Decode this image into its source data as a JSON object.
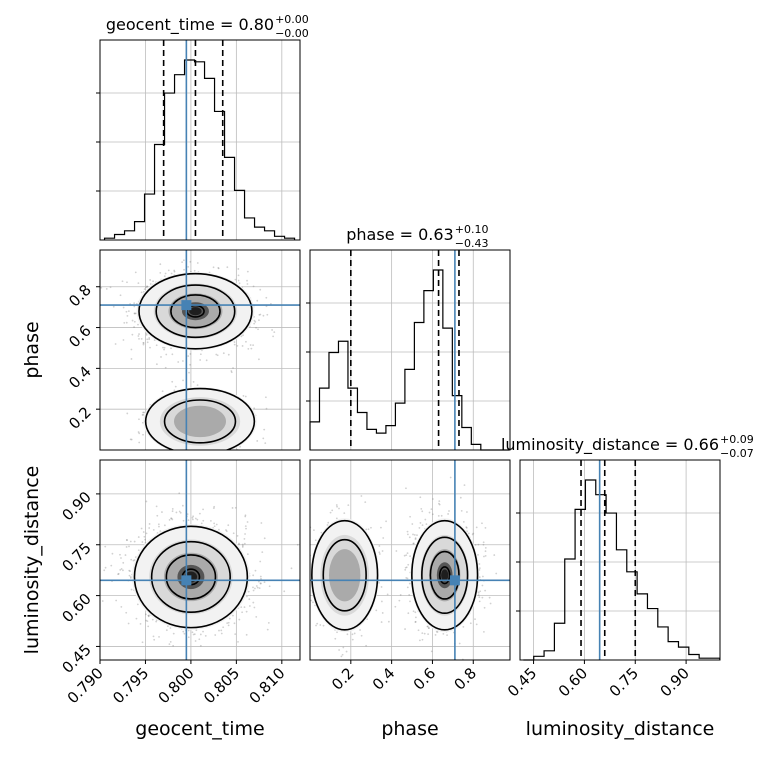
{
  "chart_data": {
    "type": "corner",
    "parameters": [
      "geocent_time",
      "phase",
      "luminosity_distance"
    ],
    "truth": {
      "geocent_time": 0.7995,
      "phase": 0.71,
      "luminosity_distance": 0.645
    },
    "titles": {
      "geocent_time": {
        "label": "geocent_time = 0.80",
        "plus": "+0.00",
        "minus": "−0.00"
      },
      "phase": {
        "label": "phase = 0.63",
        "plus": "+0.10",
        "minus": "−0.43"
      },
      "luminosity_distance": {
        "label": "luminosity_distance = 0.66",
        "plus": "+0.09",
        "minus": "−0.07"
      }
    },
    "axes": {
      "geocent_time": {
        "range": [
          0.79,
          0.812
        ],
        "ticks": [
          "0.790",
          "0.795",
          "0.800",
          "0.805",
          "0.810"
        ],
        "tick_values": [
          0.79,
          0.795,
          0.8,
          0.805,
          0.81
        ]
      },
      "phase": {
        "range": [
          0.0,
          0.98
        ],
        "ticks": [
          "0.2",
          "0.4",
          "0.6",
          "0.8"
        ],
        "tick_values": [
          0.2,
          0.4,
          0.6,
          0.8
        ]
      },
      "luminosity_distance": {
        "range": [
          0.41,
          1.0
        ],
        "ticks": [
          "0.45",
          "0.60",
          "0.75",
          "0.90"
        ],
        "tick_values": [
          0.45,
          0.6,
          0.75,
          0.9
        ]
      }
    },
    "quantiles": {
      "geocent_time": [
        0.797,
        0.8005,
        0.8035
      ],
      "phase": [
        0.2,
        0.63,
        0.73
      ],
      "luminosity_distance": [
        0.59,
        0.66,
        0.75
      ]
    },
    "histograms": {
      "geocent_time": {
        "edges_start": 0.7905,
        "bin_width": 0.0011,
        "counts": [
          1,
          3,
          5,
          10,
          25,
          52,
          80,
          90,
          98,
          97,
          88,
          70,
          45,
          27,
          12,
          7,
          5,
          2,
          1
        ]
      },
      "phase": {
        "edges_start": 0.0,
        "bin_width": 0.0465,
        "counts": [
          15,
          33,
          52,
          58,
          33,
          20,
          11,
          9,
          13,
          25,
          43,
          68,
          85,
          96,
          65,
          29,
          12,
          3,
          0,
          0,
          0
        ]
      },
      "luminosity_distance": {
        "edges_start": 0.42,
        "bin_width": 0.0305,
        "counts": [
          0,
          2,
          5,
          20,
          55,
          82,
          98,
          90,
          80,
          60,
          48,
          36,
          28,
          18,
          10,
          7,
          3,
          1,
          1
        ]
      }
    },
    "grid": true,
    "pairs": [
      {
        "x": "geocent_time",
        "y": "phase",
        "modes": [
          {
            "cx": 0.8005,
            "cy": 0.68,
            "sx": 0.0027,
            "sy": 0.08,
            "w": 0.72
          },
          {
            "cx": 0.801,
            "cy": 0.14,
            "sx": 0.0026,
            "sy": 0.07,
            "w": 0.28
          }
        ]
      },
      {
        "x": "geocent_time",
        "y": "luminosity_distance",
        "modes": [
          {
            "cx": 0.8,
            "cy": 0.655,
            "sx": 0.0027,
            "sy": 0.065,
            "w": 1.0
          }
        ]
      },
      {
        "x": "phase",
        "y": "luminosity_distance",
        "modes": [
          {
            "cx": 0.66,
            "cy": 0.66,
            "sx": 0.07,
            "sy": 0.07,
            "w": 0.72
          },
          {
            "cx": 0.17,
            "cy": 0.66,
            "sx": 0.07,
            "sy": 0.07,
            "w": 0.28
          }
        ]
      }
    ]
  },
  "colors": {
    "truth": "#4682b4",
    "line": "#000000",
    "grid": "#bdbdbd",
    "points": "#7a7a7a"
  }
}
